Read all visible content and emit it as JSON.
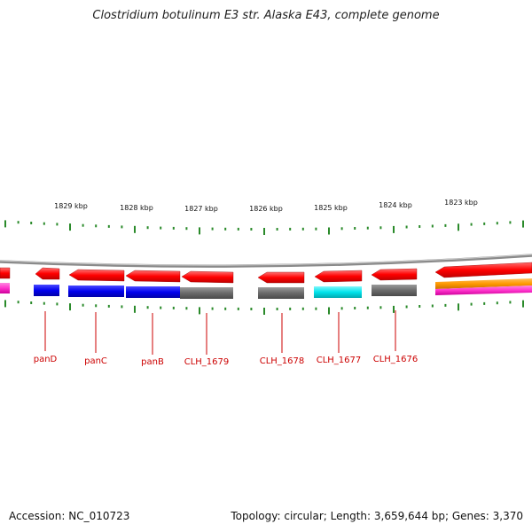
{
  "title": "Clostridium botulinum E3 str. Alaska E43, complete genome",
  "footer": {
    "accession": "Accession: NC_010723",
    "summary": "Topology: circular; Length: 3,659,644 bp; Genes: 3,370"
  },
  "ruler": {
    "labels": [
      "1829 kbp",
      "1828 kbp",
      "1827 kbp",
      "1826 kbp",
      "1825 kbp",
      "1824 kbp",
      "1823 kbp"
    ]
  },
  "genes": [
    {
      "name": "panD",
      "color": "#0000ee"
    },
    {
      "name": "panC",
      "color": "#0000ee"
    },
    {
      "name": "panB",
      "color": "#0000ee"
    },
    {
      "name": "CLH_1679",
      "color": "#6b6b6b"
    },
    {
      "name": "CLH_1678",
      "color": "#6b6b6b"
    },
    {
      "name": "CLH_1677",
      "color": "#00d0d8"
    },
    {
      "name": "CLH_1676",
      "color": "#6b6b6b"
    }
  ],
  "colors": {
    "cds_red": "#ff0000",
    "backbone": "#808080",
    "tick_green": "#2a8a2a",
    "label_red": "#cc0000",
    "orange": "#ff9900",
    "magenta": "#ff33cc"
  }
}
